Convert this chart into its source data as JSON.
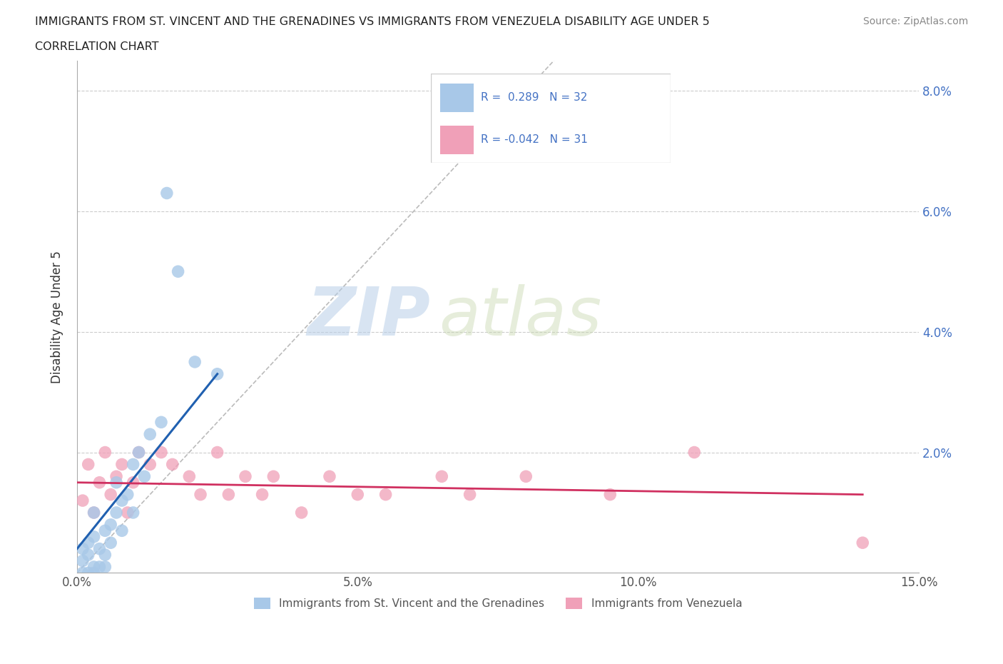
{
  "title_line1": "IMMIGRANTS FROM ST. VINCENT AND THE GRENADINES VS IMMIGRANTS FROM VENEZUELA DISABILITY AGE UNDER 5",
  "title_line2": "CORRELATION CHART",
  "source_text": "Source: ZipAtlas.com",
  "ylabel": "Disability Age Under 5",
  "xlim": [
    0.0,
    0.15
  ],
  "ylim": [
    0.0,
    0.085
  ],
  "xticks": [
    0.0,
    0.05,
    0.1,
    0.15
  ],
  "xticklabels": [
    "0.0%",
    "5.0%",
    "10.0%",
    "15.0%"
  ],
  "yticks": [
    0.0,
    0.02,
    0.04,
    0.06,
    0.08
  ],
  "yticklabels": [
    "",
    "2.0%",
    "4.0%",
    "6.0%",
    "8.0%"
  ],
  "blue_color": "#a8c8e8",
  "pink_color": "#f0a0b8",
  "blue_line_color": "#2060b0",
  "pink_line_color": "#d03060",
  "watermark_zip": "ZIP",
  "watermark_atlas": "atlas",
  "sv_x": [
    0.001,
    0.001,
    0.001,
    0.002,
    0.002,
    0.002,
    0.003,
    0.003,
    0.003,
    0.003,
    0.004,
    0.004,
    0.005,
    0.005,
    0.005,
    0.006,
    0.006,
    0.007,
    0.007,
    0.008,
    0.008,
    0.009,
    0.01,
    0.01,
    0.011,
    0.012,
    0.013,
    0.015,
    0.016,
    0.018,
    0.021,
    0.025
  ],
  "sv_y": [
    0.0,
    0.002,
    0.004,
    0.0,
    0.003,
    0.005,
    0.0,
    0.001,
    0.006,
    0.01,
    0.001,
    0.004,
    0.001,
    0.003,
    0.007,
    0.005,
    0.008,
    0.01,
    0.015,
    0.007,
    0.012,
    0.013,
    0.01,
    0.018,
    0.02,
    0.016,
    0.023,
    0.025,
    0.063,
    0.05,
    0.035,
    0.033
  ],
  "vz_x": [
    0.001,
    0.002,
    0.003,
    0.004,
    0.005,
    0.006,
    0.007,
    0.008,
    0.009,
    0.01,
    0.011,
    0.013,
    0.015,
    0.017,
    0.02,
    0.022,
    0.025,
    0.027,
    0.03,
    0.033,
    0.035,
    0.04,
    0.045,
    0.05,
    0.055,
    0.065,
    0.07,
    0.08,
    0.095,
    0.11,
    0.14
  ],
  "vz_y": [
    0.012,
    0.018,
    0.01,
    0.015,
    0.02,
    0.013,
    0.016,
    0.018,
    0.01,
    0.015,
    0.02,
    0.018,
    0.02,
    0.018,
    0.016,
    0.013,
    0.02,
    0.013,
    0.016,
    0.013,
    0.016,
    0.01,
    0.016,
    0.013,
    0.013,
    0.016,
    0.013,
    0.016,
    0.013,
    0.02,
    0.005
  ],
  "blue_trend_x": [
    0.0,
    0.025
  ],
  "blue_trend_y": [
    0.004,
    0.033
  ],
  "pink_trend_x": [
    0.0,
    0.14
  ],
  "pink_trend_y": [
    0.015,
    0.013
  ]
}
